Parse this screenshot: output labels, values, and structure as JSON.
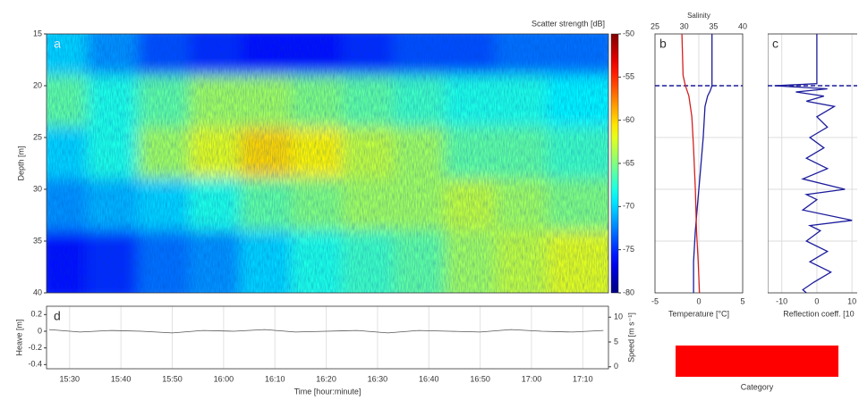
{
  "chart_data": [
    {
      "type": "heatmap",
      "panel_label": "a",
      "ylabel": "Depth [m]",
      "xlim": [
        925,
        1035
      ],
      "xbins": [
        925,
        935,
        945,
        955,
        965,
        975,
        985,
        995,
        1005,
        1015,
        1025,
        1035
      ],
      "ylim": [
        40,
        15
      ],
      "yticks": [
        15,
        20,
        25,
        30,
        35,
        40
      ],
      "ybins": [
        15,
        20,
        25,
        30,
        35,
        40
      ],
      "values": [
        [
          -70,
          -72,
          -74,
          -75,
          -76,
          -76,
          -75,
          -74,
          -74,
          -73,
          -73
        ],
        [
          -66,
          -68,
          -66,
          -64,
          -64,
          -65,
          -66,
          -67,
          -68,
          -68,
          -69
        ],
        [
          -70,
          -68,
          -64,
          -62,
          -60,
          -61,
          -63,
          -64,
          -66,
          -66,
          -67
        ],
        [
          -72,
          -71,
          -70,
          -68,
          -66,
          -65,
          -64,
          -64,
          -63,
          -64,
          -65
        ],
        [
          -76,
          -75,
          -73,
          -72,
          -70,
          -68,
          -67,
          -66,
          -64,
          -63,
          -62
        ]
      ],
      "colorbar": {
        "label": "Scatter strength [dB]",
        "lim": [
          -80,
          -50
        ],
        "ticks": [
          -50,
          -55,
          -60,
          -65,
          -70,
          -75,
          -80
        ],
        "colormap": "jet"
      }
    },
    {
      "type": "profile",
      "panel_label": "b",
      "xlabel": "Temperature [°C]",
      "x2label": "Salinity",
      "xlim": [
        -5,
        5
      ],
      "xticks": [
        -5,
        0,
        5
      ],
      "x2lim": [
        25,
        40
      ],
      "x2ticks": [
        25,
        30,
        35,
        40
      ],
      "ylim": [
        40,
        15
      ],
      "yticks": [
        15,
        20,
        25,
        30,
        35,
        40
      ],
      "grid": true,
      "refline": 20,
      "series": [
        {
          "color": "#1c1c9c",
          "axis": "x",
          "y": [
            15,
            20,
            20.5,
            21,
            22,
            25,
            28,
            31,
            34,
            37,
            40
          ],
          "values": [
            1.5,
            1.5,
            1.3,
            1.0,
            0.7,
            0.5,
            0.2,
            -0.1,
            -0.4,
            -0.6,
            -0.6
          ]
        },
        {
          "color": "#d42020",
          "axis": "x2",
          "y": [
            15,
            19,
            20,
            21,
            23,
            26,
            30,
            34,
            37,
            40
          ],
          "values": [
            29.6,
            29.8,
            30.2,
            30.8,
            31.3,
            31.6,
            31.9,
            32.1,
            32.4,
            32.6
          ]
        }
      ]
    },
    {
      "type": "profile",
      "panel_label": "c",
      "xlabel": "Reflection coeff. [10",
      "xlim": [
        -14,
        12
      ],
      "xticks": [
        -10,
        0,
        10
      ],
      "ylim": [
        40,
        15
      ],
      "yticks": [
        15,
        20,
        25,
        30,
        35,
        40
      ],
      "grid": true,
      "refline": 20,
      "series": [
        {
          "color": "#1c1c9c",
          "axis": "x",
          "y": [
            15,
            19.8,
            20,
            20.3,
            20.6,
            21,
            21.5,
            22,
            23,
            24,
            25,
            26,
            27,
            28,
            29,
            30,
            30.5,
            31,
            32,
            33,
            33.5,
            34,
            35,
            36,
            37,
            38,
            39,
            39.7,
            40
          ],
          "values": [
            0,
            0,
            -12,
            3,
            -6,
            2,
            -3,
            5,
            0,
            3,
            -2,
            2,
            -3,
            3,
            -4,
            8,
            -3,
            0,
            -4,
            10,
            -2,
            1,
            -3,
            3,
            -2,
            4,
            -1,
            -4,
            -3
          ]
        }
      ]
    },
    {
      "type": "line",
      "panel_label": "d",
      "xlabel": "Time [hour:minute]",
      "ylabel": "Heave [m]",
      "y2label": "Speed [m s⁻¹]",
      "xlim": [
        925.5,
        1035
      ],
      "xticks": [
        {
          "value": 930,
          "label": "15:30"
        },
        {
          "value": 940,
          "label": "15:40"
        },
        {
          "value": 950,
          "label": "15:50"
        },
        {
          "value": 960,
          "label": "16:00"
        },
        {
          "value": 970,
          "label": "16:10"
        },
        {
          "value": 980,
          "label": "16:20"
        },
        {
          "value": 990,
          "label": "16:30"
        },
        {
          "value": 1000,
          "label": "16:40"
        },
        {
          "value": 1010,
          "label": "16:50"
        },
        {
          "value": 1020,
          "label": "17:00"
        },
        {
          "value": 1030,
          "label": "17:10"
        }
      ],
      "ylim": [
        -0.45,
        0.3
      ],
      "yticks": [
        -0.4,
        -0.2,
        0,
        0.2
      ],
      "y2lim": [
        -0.4,
        12.2
      ],
      "y2ticks": [
        0,
        5,
        10
      ],
      "grid": true,
      "x": [
        926,
        932,
        938,
        944,
        950,
        956,
        962,
        968,
        974,
        980,
        986,
        992,
        998,
        1004,
        1010,
        1016,
        1022,
        1028,
        1034
      ],
      "series": [
        {
          "color": "#555555",
          "values": [
            0.02,
            -0.01,
            0.01,
            0,
            -0.02,
            0.01,
            0,
            0.02,
            -0.01,
            0,
            0.01,
            -0.02,
            0.01,
            0,
            -0.01,
            0.02,
            0,
            -0.01,
            0.01
          ]
        }
      ]
    }
  ],
  "category": {
    "label": "Category",
    "color": "#ff0000"
  }
}
